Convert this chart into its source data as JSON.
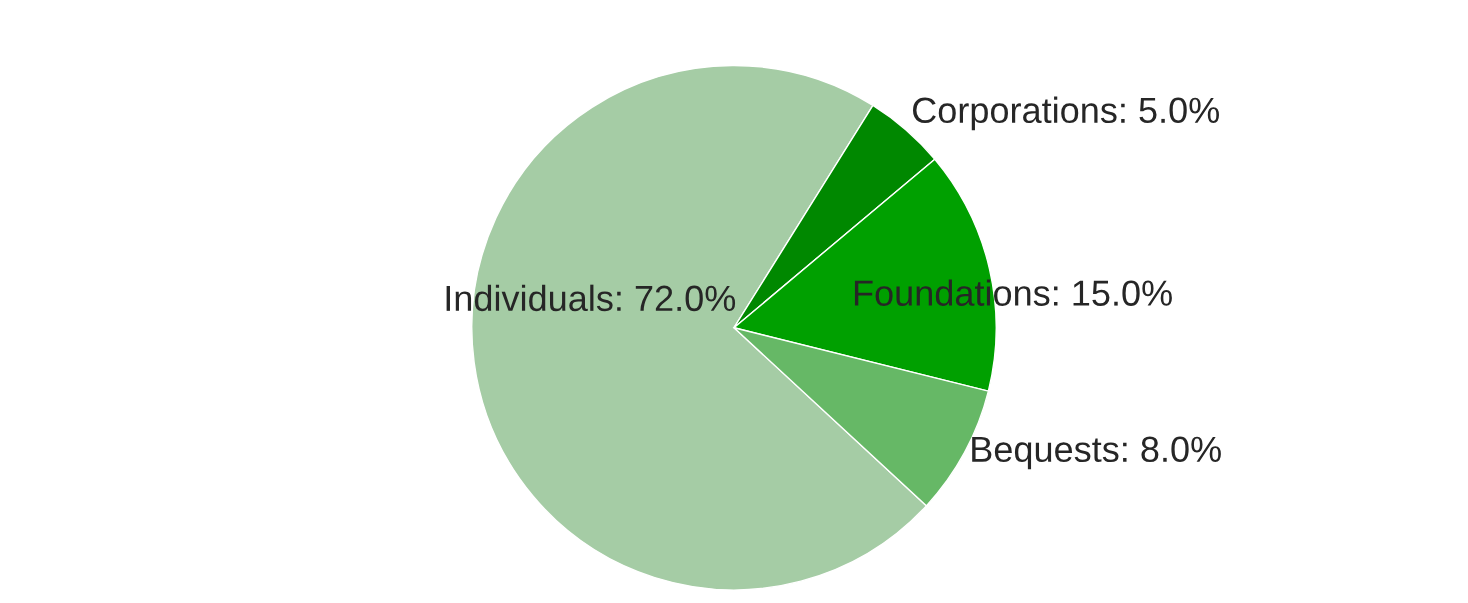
{
  "chart_data": {
    "type": "pie",
    "categories": [
      "Individuals",
      "Corporations",
      "Foundations",
      "Bequests"
    ],
    "values": [
      72.0,
      5.0,
      15.0,
      8.0
    ],
    "colors": [
      "#a5cca5",
      "#008800",
      "#00a000",
      "#66b866"
    ],
    "value_labels": [
      "72.0%",
      "5.0%",
      "15.0%",
      "8.0%"
    ]
  }
}
